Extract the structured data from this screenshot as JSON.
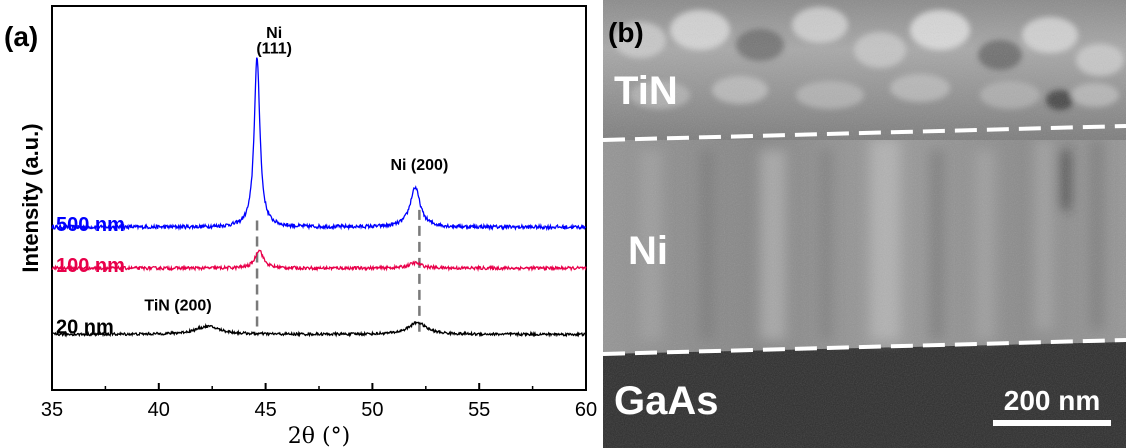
{
  "panel_a": {
    "label": "(a)",
    "chart_data": {
      "type": "line",
      "title": "",
      "xlabel": "2θ (°)",
      "ylabel": "Intensity (a.u.)",
      "xlim": [
        35,
        60
      ],
      "x_ticks": [
        "35",
        "40",
        "45",
        "50",
        "55",
        "60"
      ],
      "y_ticks": [],
      "grid": false,
      "series": [
        {
          "name": "500 nm",
          "color": "#0000ff",
          "baseline": 0.615,
          "peaks": [
            {
              "center": 44.6,
              "height": 0.64,
              "width": 0.16
            },
            {
              "center": 52.0,
              "height": 0.15,
              "width": 0.28
            }
          ],
          "noise": 0.007
        },
        {
          "name": "100 nm",
          "color": "#e8004a",
          "baseline": 0.46,
          "peaks": [
            {
              "center": 44.7,
              "height": 0.07,
              "width": 0.22
            },
            {
              "center": 52.0,
              "height": 0.02,
              "width": 0.35
            }
          ],
          "noise": 0.006
        },
        {
          "name": "20 nm",
          "color": "#000000",
          "baseline": 0.21,
          "peaks": [
            {
              "center": 42.3,
              "height": 0.03,
              "width": 0.7
            },
            {
              "center": 52.1,
              "height": 0.045,
              "width": 0.5
            }
          ],
          "noise": 0.005
        }
      ],
      "reference_lines": [
        {
          "x": 44.6,
          "from": 0.24,
          "to": 0.64
        },
        {
          "x": 52.2,
          "from": 0.22,
          "to": 0.68
        }
      ],
      "annotations": [
        {
          "text": "Ni",
          "x": 45.4,
          "y": 1.33
        },
        {
          "text": "(111)",
          "x": 45.4,
          "y": 1.27
        },
        {
          "text": "Ni (200)",
          "x": 52.2,
          "y": 0.83
        },
        {
          "text": "TiN (200)",
          "x": 40.9,
          "y": 0.3
        }
      ]
    }
  },
  "panel_b": {
    "label": "(b)",
    "layers": [
      "TiN",
      "Ni",
      "GaAs"
    ],
    "scale_bar": "200 nm",
    "colors": {
      "gaas": "#2a2a2a",
      "ni": "#8f8f8f",
      "tin": "#9a9a9a",
      "interface_line": "#ffffff"
    }
  }
}
